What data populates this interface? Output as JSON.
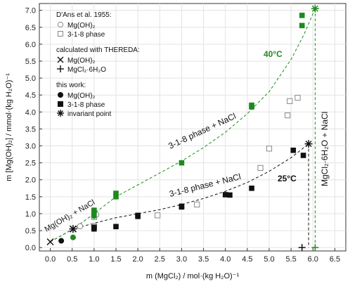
{
  "chart_data": {
    "type": "scatter",
    "xlabel": "m (MgCl₂) / mol·(kg H₂O)⁻¹",
    "ylabel": "m [Mg(OH)₂] / mmol·(kg H₂O)⁻¹",
    "xlim": [
      -0.25,
      6.75
    ],
    "ylim": [
      -0.1,
      7.2
    ],
    "x_ticks": [
      "0.0",
      "0.5",
      "1.0",
      "1.5",
      "2.0",
      "2.5",
      "3.0",
      "3.5",
      "4.0",
      "4.5",
      "5.0",
      "5.5",
      "6.0",
      "6.5"
    ],
    "y_ticks": [
      "0.0",
      "0.5",
      "1.0",
      "1.5",
      "2.0",
      "2.5",
      "3.0",
      "3.5",
      "4.0",
      "4.5",
      "5.0",
      "5.5",
      "6.0",
      "6.5",
      "7.0"
    ],
    "grid": true,
    "legend_position": "top-left",
    "legend": {
      "group1_title": "D'Ans et al. 1955:",
      "group1_items": [
        "Mg(OH)₂",
        "3-1-8 phase"
      ],
      "group2_title": "calculated with THEREDA:",
      "group2_items": [
        "Mg(OH)₂",
        "MgCl₂·6H₂O"
      ],
      "group3_title": "this work:",
      "group3_items": [
        "Mg(OH)₂",
        "3-1-8 phase",
        "invariant point"
      ]
    },
    "colors": {
      "t25": "#111111",
      "t40": "#1e8a1e",
      "dans": "#888888"
    },
    "annotations": {
      "t40_label": "40°C",
      "t25_label": "25°C",
      "upper_phase_label": "3-1-8 phase + NaCl",
      "lower_phase_label": "3-1-8 phase + NaCl",
      "mgoh_label": "Mg(OH)₂ + NaCl",
      "vertical_label": "MgCl₂·6H₂O + NaCl"
    },
    "series": [
      {
        "name": "D'Ans 3-1-8 phase",
        "color": "#888888",
        "marker": "open-square",
        "x": [
          1.0,
          1.0,
          2.45,
          3.35,
          4.8,
          5.0,
          5.42,
          5.47,
          5.65
        ],
        "y": [
          0.63,
          0.9,
          0.95,
          1.27,
          2.35,
          2.92,
          3.9,
          4.32,
          4.42
        ]
      },
      {
        "name": "D'Ans Mg(OH)₂",
        "color": "#888888",
        "marker": "open-circle",
        "x": [
          0.68,
          1.05
        ],
        "y": [
          0.63,
          0.97
        ]
      },
      {
        "name": "Mg(OH)₂ 25°C",
        "color": "#111111",
        "marker": "filled-circle",
        "x": [
          0.25
        ],
        "y": [
          0.2
        ]
      },
      {
        "name": "3-1-8 phase 25°C",
        "color": "#111111",
        "marker": "filled-square",
        "x": [
          1.0,
          1.0,
          1.5,
          2.0,
          2.0,
          3.0,
          3.0,
          4.0,
          4.1,
          4.6,
          5.55,
          5.78
        ],
        "y": [
          0.55,
          0.6,
          0.62,
          0.92,
          0.95,
          1.2,
          1.22,
          1.56,
          1.55,
          1.75,
          2.87,
          2.72
        ]
      },
      {
        "name": "Mg(OH)₂ 40°C",
        "color": "#1e8a1e",
        "marker": "filled-circle",
        "x": [
          0.52,
          1.0
        ],
        "y": [
          0.3,
          0.93
        ]
      },
      {
        "name": "3-1-8 phase 40°C",
        "color": "#1e8a1e",
        "marker": "filled-square",
        "x": [
          1.0,
          1.0,
          1.5,
          1.5,
          3.0,
          4.6,
          4.6,
          5.75,
          5.75
        ],
        "y": [
          1.05,
          1.1,
          1.5,
          1.6,
          2.5,
          4.15,
          4.2,
          6.55,
          6.85
        ]
      },
      {
        "name": "invariant point 25°C",
        "color": "#111111",
        "marker": "asterisk",
        "x": [
          0.52,
          5.9
        ],
        "y": [
          0.55,
          3.06
        ]
      },
      {
        "name": "invariant point 40°C",
        "color": "#1e8a1e",
        "marker": "asterisk",
        "x": [
          6.05
        ],
        "y": [
          7.05
        ]
      },
      {
        "name": "THEREDA Mg(OH)₂",
        "color": "#111111",
        "marker": "x",
        "x": [
          0.0,
          0.52
        ],
        "y": [
          0.17,
          0.55
        ]
      },
      {
        "name": "THEREDA MgCl₂·6H₂O",
        "color": "#111111",
        "marker": "plus",
        "x": [
          5.75
        ],
        "y": [
          0.0
        ]
      },
      {
        "name": "THEREDA MgCl₂·6H₂O 40°C",
        "color": "#1e8a1e",
        "marker": "plus",
        "x": [
          6.05
        ],
        "y": [
          0.0
        ]
      }
    ],
    "curves": [
      {
        "name": "25°C fit",
        "color": "#111111",
        "dash": true,
        "x": [
          0.0,
          0.52,
          1.0,
          1.5,
          2.0,
          2.5,
          3.0,
          3.5,
          4.0,
          4.5,
          5.0,
          5.5,
          5.9
        ],
        "y": [
          0.17,
          0.55,
          0.72,
          0.88,
          1.0,
          1.12,
          1.27,
          1.45,
          1.66,
          1.92,
          2.25,
          2.65,
          3.06
        ]
      },
      {
        "name": "40°C fit",
        "color": "#1e8a1e",
        "dash": true,
        "x": [
          0.0,
          0.52,
          1.0,
          1.5,
          2.0,
          2.5,
          3.0,
          3.5,
          4.0,
          4.5,
          5.0,
          5.5,
          5.8,
          6.05
        ],
        "y": [
          0.17,
          0.55,
          1.0,
          1.5,
          1.85,
          2.2,
          2.55,
          2.95,
          3.4,
          3.95,
          4.6,
          5.55,
          6.3,
          7.05
        ]
      },
      {
        "name": "25°C vertical",
        "color": "#111111",
        "dash": true,
        "x": [
          5.9,
          5.9
        ],
        "y": [
          3.06,
          0.0
        ]
      },
      {
        "name": "40°C vertical",
        "color": "#1e8a1e",
        "dash": true,
        "x": [
          6.05,
          6.05
        ],
        "y": [
          7.05,
          0.0
        ]
      }
    ]
  }
}
